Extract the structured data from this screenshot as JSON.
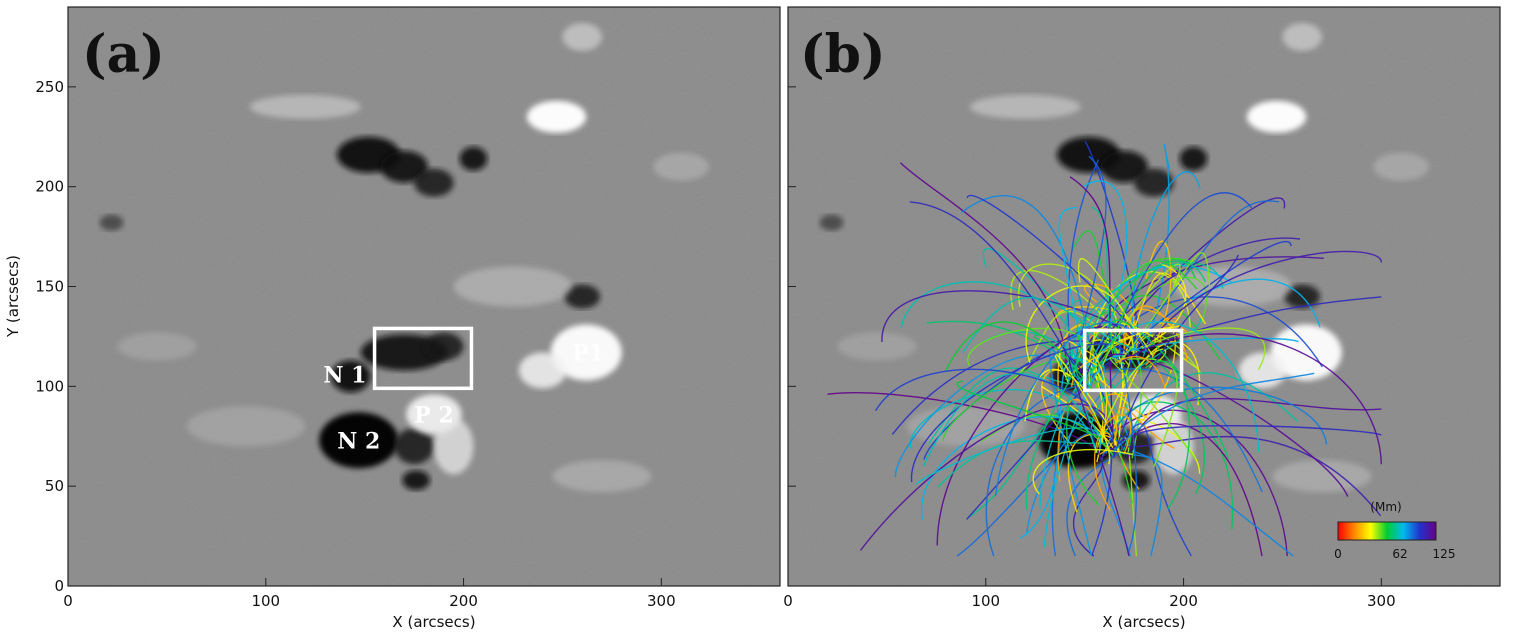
{
  "panels": [
    {
      "label": "(a)"
    },
    {
      "label": "(b)"
    }
  ],
  "axes": {
    "xlabel": "X (arcsecs)",
    "ylabel": "Y (arcsecs)",
    "xlim": [
      0,
      360
    ],
    "ylim": [
      0,
      290
    ],
    "xticks": [
      0,
      100,
      200,
      300
    ],
    "yticks": [
      0,
      50,
      100,
      150,
      200,
      250
    ]
  },
  "regions": [
    {
      "label": "N 1",
      "x": 140,
      "y": 106
    },
    {
      "label": "N 2",
      "x": 147,
      "y": 73
    },
    {
      "label": "P 2",
      "x": 185,
      "y": 86
    },
    {
      "label": "P1",
      "x": 263,
      "y": 117
    }
  ],
  "boxes": {
    "a": {
      "x0": 155,
      "x1": 204,
      "y0": 99,
      "y1": 129
    },
    "b": {
      "x0": 150,
      "x1": 199,
      "y0": 98,
      "y1": 128
    }
  },
  "colorbar": {
    "title": "(Mm)",
    "ticks": [
      "0",
      "62",
      "125"
    ],
    "colors": [
      "#ff0000",
      "#ff8800",
      "#ffff00",
      "#00cc33",
      "#00bbee",
      "#2233cc",
      "#660088"
    ]
  },
  "chart_data": {
    "type": "image",
    "xlabel": "X (arcsecs)",
    "ylabel": "Y (arcsecs)",
    "xlim": [
      0,
      360
    ],
    "ylim": [
      0,
      290
    ]
  }
}
